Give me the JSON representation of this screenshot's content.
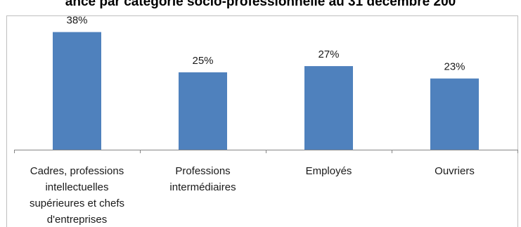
{
  "chart_data": {
    "type": "bar",
    "title": "ance par catégorie socio-professionnelle au 31 décembre 200",
    "categories": [
      [
        "Cadres, professions",
        "intellectuelles",
        "supérieures et chefs",
        "d'entreprises"
      ],
      [
        "Professions",
        "intermédiaires"
      ],
      [
        "Employés"
      ],
      [
        "Ouvriers"
      ]
    ],
    "values": [
      38,
      25,
      27,
      23
    ],
    "value_labels": [
      "38%",
      "25%",
      "27%",
      "23%"
    ],
    "unit": "%",
    "ylim": [
      0,
      42
    ],
    "xlabel": "",
    "ylabel": "",
    "grid": false,
    "legend": "none",
    "bar_color": "#4f81bd"
  }
}
